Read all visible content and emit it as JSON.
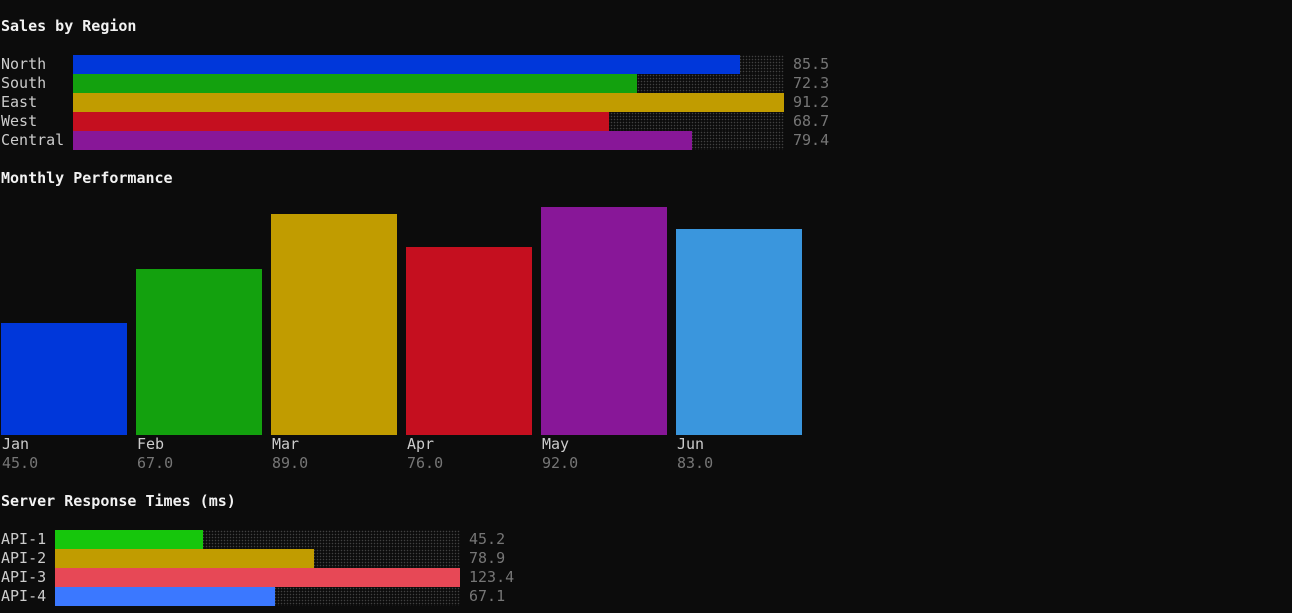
{
  "chart_data": [
    {
      "type": "bar",
      "orientation": "horizontal",
      "title": "Sales by Region",
      "categories": [
        "North",
        "South",
        "East",
        "West",
        "Central"
      ],
      "values": [
        85.5,
        72.3,
        91.2,
        68.7,
        79.4
      ],
      "value_labels": [
        "85.5",
        "72.3",
        "91.2",
        "68.7",
        "79.4"
      ],
      "colors": [
        "#0037da",
        "#13a10e",
        "#c19c00",
        "#c50f1f",
        "#881798"
      ],
      "xlim": [
        0,
        91.2
      ]
    },
    {
      "type": "bar",
      "orientation": "vertical",
      "title": "Monthly Performance",
      "categories": [
        "Jan",
        "Feb",
        "Mar",
        "Apr",
        "May",
        "Jun"
      ],
      "values": [
        45.0,
        67.0,
        89.0,
        76.0,
        92.0,
        83.0
      ],
      "value_labels": [
        "45.0",
        "67.0",
        "89.0",
        "76.0",
        "92.0",
        "83.0"
      ],
      "colors": [
        "#0037da",
        "#13a10e",
        "#c19c00",
        "#c50f1f",
        "#881798",
        "#3a96dd"
      ],
      "ylim": [
        0,
        92.0
      ]
    },
    {
      "type": "bar",
      "orientation": "horizontal",
      "title": "Server Response Times (ms)",
      "categories": [
        "API-1",
        "API-2",
        "API-3",
        "API-4"
      ],
      "values": [
        45.2,
        78.9,
        123.4,
        67.1
      ],
      "value_labels": [
        "45.2",
        "78.9",
        "123.4",
        "67.1"
      ],
      "colors": [
        "#16c60c",
        "#c19c00",
        "#e74856",
        "#3b78ff"
      ],
      "xlim": [
        0,
        123.4
      ]
    }
  ]
}
